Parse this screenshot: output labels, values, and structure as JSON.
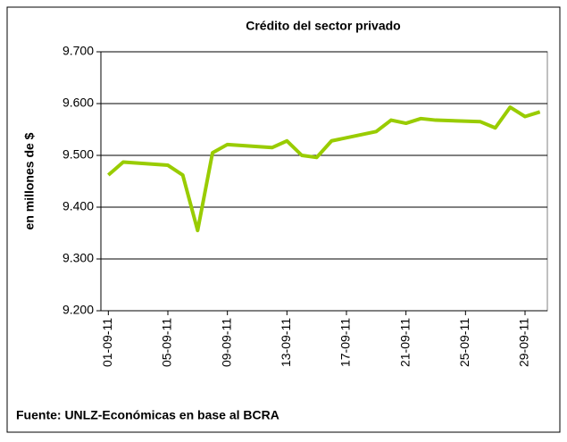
{
  "chart_data": {
    "type": "line",
    "title": "Crédito del sector privado",
    "ylabel": "en millones de $",
    "source": "Fuente: UNLZ-Económicas en base al BCRA",
    "x": [
      "01-09-11",
      "02-09-11",
      "05-09-11",
      "06-09-11",
      "07-09-11",
      "08-09-11",
      "09-09-11",
      "12-09-11",
      "13-09-11",
      "14-09-11",
      "15-09-11",
      "16-09-11",
      "19-09-11",
      "20-09-11",
      "21-09-11",
      "22-09-11",
      "23-09-11",
      "26-09-11",
      "27-09-11",
      "28-09-11",
      "29-09-11",
      "30-09-11"
    ],
    "series": [
      {
        "name": "Crédito del sector privado",
        "color": "#99cc00",
        "values": [
          9462,
          9487,
          9481,
          9462,
          9355,
          9505,
          9521,
          9515,
          9528,
          9500,
          9496,
          9528,
          9546,
          9568,
          9562,
          9571,
          9568,
          9565,
          9553,
          9593,
          9575,
          9584
        ]
      }
    ],
    "xlim": [
      "01-09-11",
      "30-09-11"
    ],
    "xticks": [
      "01-09-11",
      "05-09-11",
      "09-09-11",
      "13-09-11",
      "17-09-11",
      "21-09-11",
      "25-09-11",
      "29-09-11"
    ],
    "ylim": [
      9200,
      9700
    ],
    "yticks": [
      {
        "value": 9200,
        "label": "9.200"
      },
      {
        "value": 9300,
        "label": "9.300"
      },
      {
        "value": 9400,
        "label": "9.400"
      },
      {
        "value": 9500,
        "label": "9.500"
      },
      {
        "value": 9600,
        "label": "9.600"
      },
      {
        "value": 9700,
        "label": "9.700"
      }
    ],
    "grid": true
  }
}
